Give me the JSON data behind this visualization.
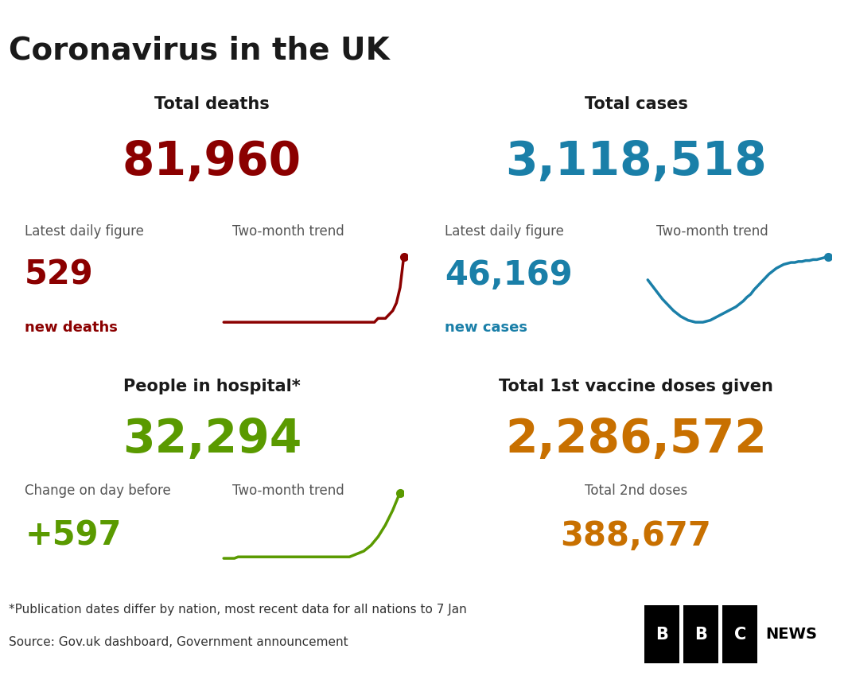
{
  "title": "Coronavirus in the UK",
  "bg_color": "#ffffff",
  "title_color": "#1a1a1a",
  "divider_color": "#888888",
  "quad_titles": [
    "Total deaths",
    "Total cases",
    "People in hospital*",
    "Total 1st vaccine doses given"
  ],
  "quad_big_numbers": [
    "81,960",
    "3,118,518",
    "32,294",
    "2,286,572"
  ],
  "quad_big_colors": [
    "#8b0000",
    "#1a7fa8",
    "#5a9a00",
    "#c87000"
  ],
  "quad_sub_labels": [
    [
      "Latest daily figure",
      "Two-month trend"
    ],
    [
      "Latest daily figure",
      "Two-month trend"
    ],
    [
      "Change on day before",
      "Two-month trend"
    ],
    [
      "Total 2nd doses",
      ""
    ]
  ],
  "quad_sub_numbers": [
    "529",
    "46,169",
    "+597",
    "388,677"
  ],
  "quad_sub_colors": [
    "#8b0000",
    "#1a7fa8",
    "#5a9a00",
    "#c87000"
  ],
  "quad_sub_labels2": [
    "new deaths",
    "new cases",
    "",
    ""
  ],
  "trend_deaths": [
    3,
    3,
    3,
    3,
    3,
    3,
    3,
    3,
    3,
    3,
    3,
    3,
    3,
    3,
    3,
    3,
    3,
    3,
    3,
    3,
    3,
    3,
    3,
    3,
    3,
    3,
    3,
    3,
    3,
    3,
    3,
    3,
    3,
    3,
    3,
    3,
    3,
    3,
    3,
    3,
    3,
    3,
    4,
    4,
    4,
    5,
    6,
    8,
    12,
    20
  ],
  "trend_cases": [
    80,
    75,
    70,
    65,
    60,
    56,
    52,
    48,
    45,
    42,
    40,
    38,
    37,
    36,
    36,
    36,
    37,
    38,
    40,
    42,
    44,
    46,
    48,
    50,
    52,
    55,
    58,
    62,
    65,
    70,
    74,
    78,
    82,
    86,
    89,
    92,
    94,
    96,
    97,
    98,
    98,
    99,
    99,
    100,
    100,
    101,
    101,
    102,
    103,
    104
  ],
  "trend_hospital": [
    40,
    40,
    40,
    40,
    41,
    41,
    41,
    41,
    41,
    41,
    41,
    41,
    41,
    41,
    41,
    41,
    41,
    41,
    41,
    41,
    41,
    41,
    41,
    41,
    41,
    41,
    41,
    41,
    41,
    41,
    41,
    41,
    41,
    41,
    41,
    41,
    42,
    43,
    44,
    45,
    47,
    49,
    52,
    55,
    59,
    63,
    68,
    73,
    79,
    85
  ],
  "trend_deaths_color": "#8b0000",
  "trend_cases_color": "#1a7fa8",
  "trend_hospital_color": "#5a9a00",
  "footnote1": "*Publication dates differ by nation, most recent data for all nations to 7 Jan",
  "footnote2": "Source: Gov.uk dashboard, Government announcement",
  "footnote_color": "#333333",
  "title_fontsize": 28,
  "quad_title_fontsize": 15,
  "big_num_fontsize": 42,
  "sub_num_fontsize": 30,
  "sub_label_fontsize": 12,
  "sub_label2_fontsize": 13,
  "footnote_fontsize": 11
}
